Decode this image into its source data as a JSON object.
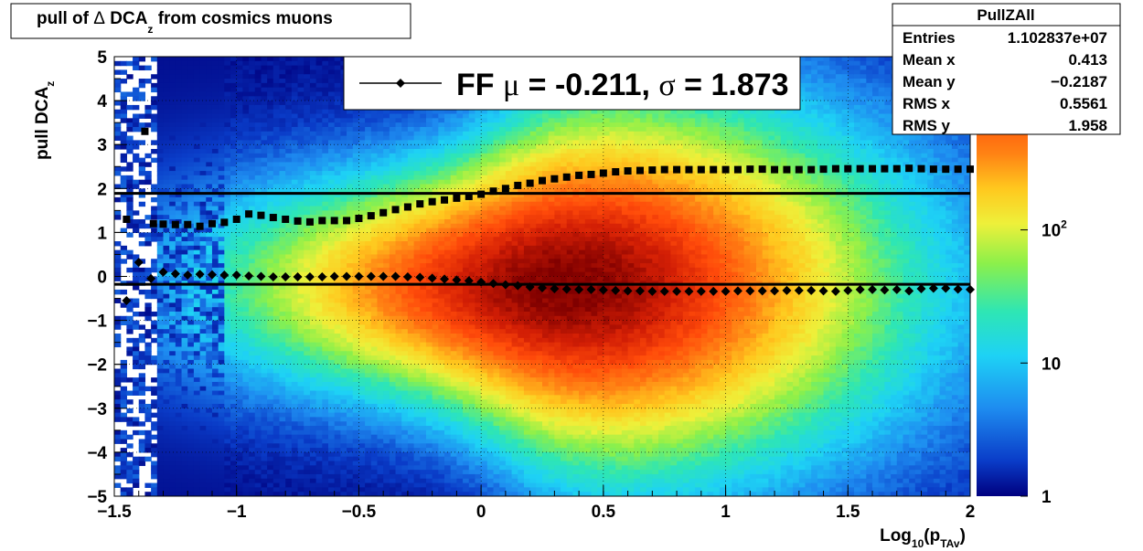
{
  "title": {
    "pre": "pull of ",
    "delta": "Δ",
    "dca": " DCA",
    "sub": "z",
    "post": " from cosmics muons"
  },
  "colors": {
    "mean_line": "#000000",
    "markers": "#000000",
    "palette": [
      "#00007f",
      "#0a3cc8",
      "#1e8cf0",
      "#1ed2f5",
      "#2ee6b4",
      "#8cf04a",
      "#eef03a",
      "#ffc81e",
      "#ff8214",
      "#ff4a0a",
      "#d21e05",
      "#800000"
    ]
  },
  "chart_data": {
    "type": "heatmap",
    "xlabel": {
      "main": "Log",
      "sub1": "10",
      "mid": "(p",
      "sub2": "TAv",
      "end": ")"
    },
    "ylabel": {
      "main": "pull DCA",
      "sub": "z"
    },
    "xlim": [
      -1.5,
      2.0
    ],
    "ylim": [
      -5,
      5
    ],
    "x_ticks": [
      {
        "v": -1.5,
        "label": "−1.5"
      },
      {
        "v": -1,
        "label": "−1"
      },
      {
        "v": -0.5,
        "label": "−0.5"
      },
      {
        "v": 0,
        "label": "0"
      },
      {
        "v": 0.5,
        "label": "0.5"
      },
      {
        "v": 1,
        "label": "1"
      },
      {
        "v": 1.5,
        "label": "1.5"
      },
      {
        "v": 2,
        "label": "2"
      }
    ],
    "y_ticks": [
      {
        "v": 5,
        "label": "5"
      },
      {
        "v": 4,
        "label": "4"
      },
      {
        "v": 3,
        "label": "3"
      },
      {
        "v": 2,
        "label": "2"
      },
      {
        "v": 1,
        "label": "1"
      },
      {
        "v": 0,
        "label": "0"
      },
      {
        "v": -1,
        "label": "−1"
      },
      {
        "v": -2,
        "label": "−2"
      },
      {
        "v": -3,
        "label": "−3"
      },
      {
        "v": -4,
        "label": "−4"
      },
      {
        "v": -5,
        "label": "−5"
      }
    ],
    "grid": true,
    "colorbar": {
      "scale": "log",
      "range": [
        1,
        2000
      ],
      "labels": [
        {
          "v": 1,
          "label": "1"
        },
        {
          "v": 10,
          "label": "10"
        },
        {
          "v": 100,
          "label": "10",
          "sup": "2"
        }
      ]
    },
    "fit_lines": [
      1.89,
      -0.18
    ],
    "series": [
      {
        "name": "sigma",
        "marker": "square",
        "points": [
          [
            -1.45,
            1.3
          ],
          [
            -1.375,
            3.3
          ],
          [
            -1.34,
            1.2
          ],
          [
            -1.3,
            1.19
          ],
          [
            -1.25,
            1.18
          ],
          [
            -1.2,
            1.18
          ],
          [
            -1.15,
            1.14
          ],
          [
            -1.1,
            1.2
          ],
          [
            -1.05,
            1.23
          ],
          [
            -1.0,
            1.3
          ],
          [
            -0.95,
            1.42
          ],
          [
            -0.9,
            1.39
          ],
          [
            -0.85,
            1.34
          ],
          [
            -0.8,
            1.3
          ],
          [
            -0.75,
            1.26
          ],
          [
            -0.7,
            1.24
          ],
          [
            -0.65,
            1.27
          ],
          [
            -0.6,
            1.27
          ],
          [
            -0.55,
            1.27
          ],
          [
            -0.5,
            1.32
          ],
          [
            -0.45,
            1.38
          ],
          [
            -0.4,
            1.45
          ],
          [
            -0.35,
            1.52
          ],
          [
            -0.3,
            1.58
          ],
          [
            -0.25,
            1.65
          ],
          [
            -0.2,
            1.7
          ],
          [
            -0.15,
            1.74
          ],
          [
            -0.1,
            1.78
          ],
          [
            -0.05,
            1.82
          ],
          [
            0.0,
            1.87
          ],
          [
            0.05,
            1.94
          ],
          [
            0.1,
            2.0
          ],
          [
            0.15,
            2.07
          ],
          [
            0.2,
            2.12
          ],
          [
            0.25,
            2.18
          ],
          [
            0.3,
            2.22
          ],
          [
            0.35,
            2.26
          ],
          [
            0.4,
            2.3
          ],
          [
            0.45,
            2.32
          ],
          [
            0.5,
            2.35
          ],
          [
            0.55,
            2.38
          ],
          [
            0.6,
            2.4
          ],
          [
            0.65,
            2.41
          ],
          [
            0.7,
            2.42
          ],
          [
            0.75,
            2.43
          ],
          [
            0.8,
            2.43
          ],
          [
            0.85,
            2.43
          ],
          [
            0.9,
            2.43
          ],
          [
            0.95,
            2.43
          ],
          [
            1.0,
            2.43
          ],
          [
            1.05,
            2.43
          ],
          [
            1.1,
            2.44
          ],
          [
            1.15,
            2.44
          ],
          [
            1.2,
            2.43
          ],
          [
            1.25,
            2.43
          ],
          [
            1.3,
            2.43
          ],
          [
            1.35,
            2.43
          ],
          [
            1.4,
            2.44
          ],
          [
            1.45,
            2.45
          ],
          [
            1.5,
            2.45
          ],
          [
            1.55,
            2.45
          ],
          [
            1.6,
            2.45
          ],
          [
            1.65,
            2.45
          ],
          [
            1.7,
            2.45
          ],
          [
            1.75,
            2.46
          ],
          [
            1.8,
            2.45
          ],
          [
            1.85,
            2.44
          ],
          [
            1.9,
            2.44
          ],
          [
            1.95,
            2.44
          ],
          [
            2.0,
            2.44
          ]
        ]
      },
      {
        "name": "mean",
        "marker": "diamond",
        "points": [
          [
            -1.45,
            -0.55
          ],
          [
            -1.4,
            0.32
          ],
          [
            -1.35,
            -0.05
          ],
          [
            -1.3,
            0.1
          ],
          [
            -1.25,
            0.06
          ],
          [
            -1.2,
            0.03
          ],
          [
            -1.15,
            0.05
          ],
          [
            -1.1,
            0.04
          ],
          [
            -1.05,
            0.03
          ],
          [
            -1.0,
            0.03
          ],
          [
            -0.95,
            0.01
          ],
          [
            -0.9,
            0.0
          ],
          [
            -0.85,
            -0.01
          ],
          [
            -0.8,
            -0.01
          ],
          [
            -0.75,
            -0.01
          ],
          [
            -0.7,
            -0.01
          ],
          [
            -0.65,
            -0.01
          ],
          [
            -0.6,
            0.0
          ],
          [
            -0.55,
            0.0
          ],
          [
            -0.5,
            0.0
          ],
          [
            -0.45,
            0.0
          ],
          [
            -0.4,
            0.0
          ],
          [
            -0.35,
            0.0
          ],
          [
            -0.3,
            -0.01
          ],
          [
            -0.25,
            -0.02
          ],
          [
            -0.2,
            -0.04
          ],
          [
            -0.15,
            -0.06
          ],
          [
            -0.1,
            -0.08
          ],
          [
            -0.05,
            -0.1
          ],
          [
            0.0,
            -0.13
          ],
          [
            0.05,
            -0.16
          ],
          [
            0.1,
            -0.19
          ],
          [
            0.15,
            -0.21
          ],
          [
            0.2,
            -0.24
          ],
          [
            0.25,
            -0.26
          ],
          [
            0.3,
            -0.28
          ],
          [
            0.35,
            -0.29
          ],
          [
            0.4,
            -0.3
          ],
          [
            0.45,
            -0.3
          ],
          [
            0.5,
            -0.31
          ],
          [
            0.55,
            -0.32
          ],
          [
            0.6,
            -0.33
          ],
          [
            0.65,
            -0.33
          ],
          [
            0.7,
            -0.34
          ],
          [
            0.75,
            -0.34
          ],
          [
            0.8,
            -0.34
          ],
          [
            0.85,
            -0.34
          ],
          [
            0.9,
            -0.34
          ],
          [
            0.95,
            -0.34
          ],
          [
            1.0,
            -0.34
          ],
          [
            1.05,
            -0.33
          ],
          [
            1.1,
            -0.33
          ],
          [
            1.15,
            -0.33
          ],
          [
            1.2,
            -0.33
          ],
          [
            1.25,
            -0.32
          ],
          [
            1.3,
            -0.32
          ],
          [
            1.35,
            -0.32
          ],
          [
            1.4,
            -0.33
          ],
          [
            1.45,
            -0.34
          ],
          [
            1.5,
            -0.32
          ],
          [
            1.55,
            -0.3
          ],
          [
            1.6,
            -0.3
          ],
          [
            1.65,
            -0.31
          ],
          [
            1.7,
            -0.3
          ],
          [
            1.75,
            -0.33
          ],
          [
            1.8,
            -0.28
          ],
          [
            1.85,
            -0.27
          ],
          [
            1.9,
            -0.27
          ],
          [
            1.95,
            -0.29
          ],
          [
            2.0,
            -0.3
          ]
        ]
      }
    ]
  },
  "legend": {
    "text1": "FF ",
    "mu": "μ",
    "text2": " = -0.211, ",
    "sigma": "σ",
    "text3": " =   1.873"
  },
  "stats": {
    "title": "PullZAll",
    "rows": [
      {
        "label": "Entries",
        "value": "1.102837e+07"
      },
      {
        "label": "Mean x",
        "value": "0.413"
      },
      {
        "label": "Mean y",
        "value": "−0.2187"
      },
      {
        "label": "RMS x",
        "value": "0.5561"
      },
      {
        "label": "RMS y",
        "value": "1.958"
      }
    ]
  }
}
